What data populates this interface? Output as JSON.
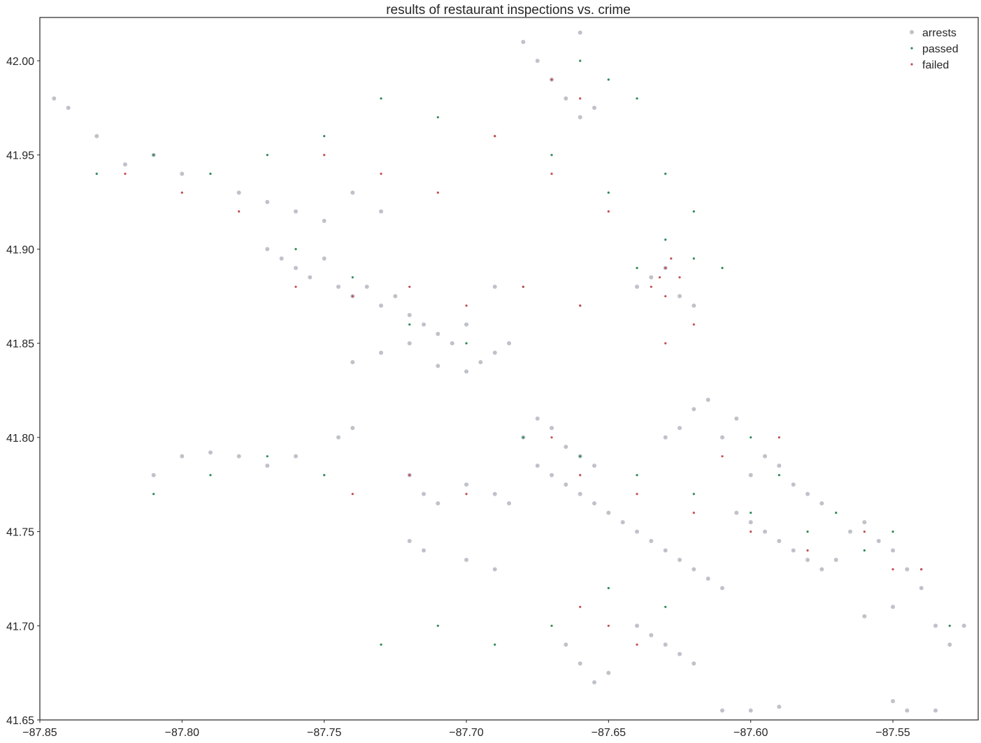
{
  "chart_data": {
    "type": "scatter",
    "title": "results of restaurant inspections vs. crime",
    "xlabel": "",
    "ylabel": "",
    "xlim": [
      -87.85,
      -87.52
    ],
    "ylim": [
      41.65,
      42.023
    ],
    "x_ticks": [
      -87.85,
      -87.8,
      -87.75,
      -87.7,
      -87.65,
      -87.6,
      -87.55
    ],
    "x_tick_labels": [
      "−87.85",
      "−87.80",
      "−87.75",
      "−87.70",
      "−87.65",
      "−87.60",
      "−87.55"
    ],
    "y_ticks": [
      41.65,
      41.7,
      41.75,
      41.8,
      41.85,
      41.9,
      41.95,
      42.0
    ],
    "y_tick_labels": [
      "41.65",
      "41.70",
      "41.75",
      "41.80",
      "41.85",
      "41.90",
      "41.95",
      "42.00"
    ],
    "grid": false,
    "legend_position": "top-right",
    "series": [
      {
        "name": "arrests",
        "color": "#c0c2ca",
        "marker": "circle",
        "points": [
          [
            -87.77,
            41.9
          ],
          [
            -87.765,
            41.895
          ],
          [
            -87.76,
            41.89
          ],
          [
            -87.755,
            41.885
          ],
          [
            -87.75,
            41.895
          ],
          [
            -87.745,
            41.88
          ],
          [
            -87.74,
            41.875
          ],
          [
            -87.735,
            41.88
          ],
          [
            -87.73,
            41.87
          ],
          [
            -87.725,
            41.875
          ],
          [
            -87.72,
            41.865
          ],
          [
            -87.715,
            41.86
          ],
          [
            -87.71,
            41.855
          ],
          [
            -87.705,
            41.85
          ],
          [
            -87.7,
            41.86
          ],
          [
            -87.695,
            41.84
          ],
          [
            -87.69,
            41.845
          ],
          [
            -87.685,
            41.85
          ],
          [
            -87.72,
            41.85
          ],
          [
            -87.73,
            41.845
          ],
          [
            -87.74,
            41.84
          ],
          [
            -87.71,
            41.838
          ],
          [
            -87.7,
            41.835
          ],
          [
            -87.69,
            41.88
          ],
          [
            -87.675,
            41.785
          ],
          [
            -87.67,
            41.78
          ],
          [
            -87.665,
            41.775
          ],
          [
            -87.66,
            41.77
          ],
          [
            -87.655,
            41.765
          ],
          [
            -87.65,
            41.76
          ],
          [
            -87.645,
            41.755
          ],
          [
            -87.64,
            41.75
          ],
          [
            -87.635,
            41.745
          ],
          [
            -87.63,
            41.74
          ],
          [
            -87.625,
            41.735
          ],
          [
            -87.62,
            41.73
          ],
          [
            -87.615,
            41.725
          ],
          [
            -87.61,
            41.72
          ],
          [
            -87.605,
            41.76
          ],
          [
            -87.6,
            41.755
          ],
          [
            -87.595,
            41.75
          ],
          [
            -87.59,
            41.745
          ],
          [
            -87.585,
            41.74
          ],
          [
            -87.58,
            41.735
          ],
          [
            -87.575,
            41.73
          ],
          [
            -87.57,
            41.735
          ],
          [
            -87.565,
            41.75
          ],
          [
            -87.56,
            41.755
          ],
          [
            -87.555,
            41.745
          ],
          [
            -87.55,
            41.74
          ],
          [
            -87.545,
            41.73
          ],
          [
            -87.64,
            41.7
          ],
          [
            -87.635,
            41.695
          ],
          [
            -87.63,
            41.69
          ],
          [
            -87.625,
            41.685
          ],
          [
            -87.62,
            41.68
          ],
          [
            -87.655,
            41.67
          ],
          [
            -87.65,
            41.675
          ],
          [
            -87.66,
            41.68
          ],
          [
            -87.665,
            41.69
          ],
          [
            -87.68,
            41.8
          ],
          [
            -87.675,
            41.81
          ],
          [
            -87.67,
            41.805
          ],
          [
            -87.665,
            41.795
          ],
          [
            -87.66,
            41.79
          ],
          [
            -87.655,
            41.785
          ],
          [
            -87.72,
            41.78
          ],
          [
            -87.715,
            41.77
          ],
          [
            -87.71,
            41.765
          ],
          [
            -87.7,
            41.775
          ],
          [
            -87.69,
            41.77
          ],
          [
            -87.685,
            41.765
          ],
          [
            -87.64,
            41.88
          ],
          [
            -87.635,
            41.885
          ],
          [
            -87.63,
            41.89
          ],
          [
            -87.625,
            41.875
          ],
          [
            -87.62,
            41.87
          ],
          [
            -87.66,
            41.97
          ],
          [
            -87.655,
            41.975
          ],
          [
            -87.665,
            41.98
          ],
          [
            -87.67,
            41.99
          ],
          [
            -87.675,
            42.0
          ],
          [
            -87.68,
            42.01
          ],
          [
            -87.66,
            42.015
          ],
          [
            -87.78,
            41.93
          ],
          [
            -87.77,
            41.925
          ],
          [
            -87.76,
            41.92
          ],
          [
            -87.75,
            41.915
          ],
          [
            -87.74,
            41.93
          ],
          [
            -87.73,
            41.92
          ],
          [
            -87.8,
            41.94
          ],
          [
            -87.81,
            41.95
          ],
          [
            -87.82,
            41.945
          ],
          [
            -87.83,
            41.96
          ],
          [
            -87.84,
            41.975
          ],
          [
            -87.845,
            41.98
          ],
          [
            -87.6,
            41.78
          ],
          [
            -87.595,
            41.79
          ],
          [
            -87.59,
            41.785
          ],
          [
            -87.585,
            41.775
          ],
          [
            -87.58,
            41.77
          ],
          [
            -87.575,
            41.765
          ],
          [
            -87.61,
            41.8
          ],
          [
            -87.605,
            41.81
          ],
          [
            -87.615,
            41.82
          ],
          [
            -87.62,
            41.815
          ],
          [
            -87.625,
            41.805
          ],
          [
            -87.63,
            41.8
          ],
          [
            -87.54,
            41.72
          ],
          [
            -87.535,
            41.7
          ],
          [
            -87.53,
            41.69
          ],
          [
            -87.525,
            41.7
          ],
          [
            -87.55,
            41.71
          ],
          [
            -87.56,
            41.705
          ],
          [
            -87.61,
            41.655
          ],
          [
            -87.6,
            41.655
          ],
          [
            -87.59,
            41.657
          ],
          [
            -87.55,
            41.66
          ],
          [
            -87.545,
            41.655
          ],
          [
            -87.535,
            41.655
          ],
          [
            -87.72,
            41.745
          ],
          [
            -87.715,
            41.74
          ],
          [
            -87.7,
            41.735
          ],
          [
            -87.69,
            41.73
          ],
          [
            -87.74,
            41.805
          ],
          [
            -87.745,
            41.8
          ],
          [
            -87.76,
            41.79
          ],
          [
            -87.77,
            41.785
          ],
          [
            -87.78,
            41.79
          ],
          [
            -87.79,
            41.792
          ],
          [
            -87.8,
            41.79
          ],
          [
            -87.81,
            41.78
          ]
        ]
      },
      {
        "name": "passed",
        "color": "#2e8b57",
        "marker": "dot",
        "points": [
          [
            -87.76,
            41.9
          ],
          [
            -87.74,
            41.885
          ],
          [
            -87.72,
            41.86
          ],
          [
            -87.7,
            41.85
          ],
          [
            -87.68,
            41.88
          ],
          [
            -87.66,
            41.87
          ],
          [
            -87.64,
            41.89
          ],
          [
            -87.63,
            41.905
          ],
          [
            -87.62,
            41.895
          ],
          [
            -87.61,
            41.89
          ],
          [
            -87.65,
            41.93
          ],
          [
            -87.67,
            41.95
          ],
          [
            -87.69,
            41.96
          ],
          [
            -87.71,
            41.97
          ],
          [
            -87.73,
            41.98
          ],
          [
            -87.75,
            41.96
          ],
          [
            -87.77,
            41.95
          ],
          [
            -87.79,
            41.94
          ],
          [
            -87.81,
            41.95
          ],
          [
            -87.83,
            41.94
          ],
          [
            -87.68,
            41.8
          ],
          [
            -87.66,
            41.79
          ],
          [
            -87.64,
            41.78
          ],
          [
            -87.62,
            41.77
          ],
          [
            -87.6,
            41.76
          ],
          [
            -87.58,
            41.75
          ],
          [
            -87.56,
            41.74
          ],
          [
            -87.54,
            41.73
          ],
          [
            -87.65,
            41.72
          ],
          [
            -87.63,
            41.71
          ],
          [
            -87.67,
            41.7
          ],
          [
            -87.69,
            41.69
          ],
          [
            -87.71,
            41.7
          ],
          [
            -87.73,
            41.69
          ],
          [
            -87.75,
            41.78
          ],
          [
            -87.77,
            41.79
          ],
          [
            -87.79,
            41.78
          ],
          [
            -87.81,
            41.77
          ],
          [
            -87.66,
            42.0
          ],
          [
            -87.65,
            41.99
          ],
          [
            -87.64,
            41.98
          ],
          [
            -87.63,
            41.94
          ],
          [
            -87.62,
            41.92
          ],
          [
            -87.6,
            41.8
          ],
          [
            -87.59,
            41.78
          ],
          [
            -87.57,
            41.76
          ],
          [
            -87.55,
            41.75
          ],
          [
            -87.53,
            41.7
          ]
        ]
      },
      {
        "name": "failed",
        "color": "#c44e52",
        "marker": "dot",
        "points": [
          [
            -87.63,
            41.89
          ],
          [
            -87.632,
            41.885
          ],
          [
            -87.628,
            41.895
          ],
          [
            -87.635,
            41.88
          ],
          [
            -87.625,
            41.885
          ],
          [
            -87.63,
            41.875
          ],
          [
            -87.66,
            41.87
          ],
          [
            -87.68,
            41.88
          ],
          [
            -87.7,
            41.87
          ],
          [
            -87.72,
            41.88
          ],
          [
            -87.74,
            41.875
          ],
          [
            -87.76,
            41.88
          ],
          [
            -87.69,
            41.96
          ],
          [
            -87.67,
            41.94
          ],
          [
            -87.65,
            41.92
          ],
          [
            -87.75,
            41.95
          ],
          [
            -87.73,
            41.94
          ],
          [
            -87.71,
            41.93
          ],
          [
            -87.66,
            41.78
          ],
          [
            -87.64,
            41.77
          ],
          [
            -87.62,
            41.76
          ],
          [
            -87.6,
            41.75
          ],
          [
            -87.58,
            41.74
          ],
          [
            -87.56,
            41.75
          ],
          [
            -87.54,
            41.73
          ],
          [
            -87.65,
            41.7
          ],
          [
            -87.64,
            41.69
          ],
          [
            -87.66,
            41.71
          ],
          [
            -87.7,
            41.77
          ],
          [
            -87.72,
            41.78
          ],
          [
            -87.74,
            41.77
          ],
          [
            -87.67,
            41.8
          ],
          [
            -87.63,
            41.85
          ],
          [
            -87.62,
            41.86
          ],
          [
            -87.67,
            41.99
          ],
          [
            -87.66,
            41.98
          ],
          [
            -87.8,
            41.93
          ],
          [
            -87.82,
            41.94
          ],
          [
            -87.78,
            41.92
          ],
          [
            -87.59,
            41.8
          ],
          [
            -87.61,
            41.79
          ],
          [
            -87.55,
            41.73
          ]
        ]
      }
    ]
  }
}
